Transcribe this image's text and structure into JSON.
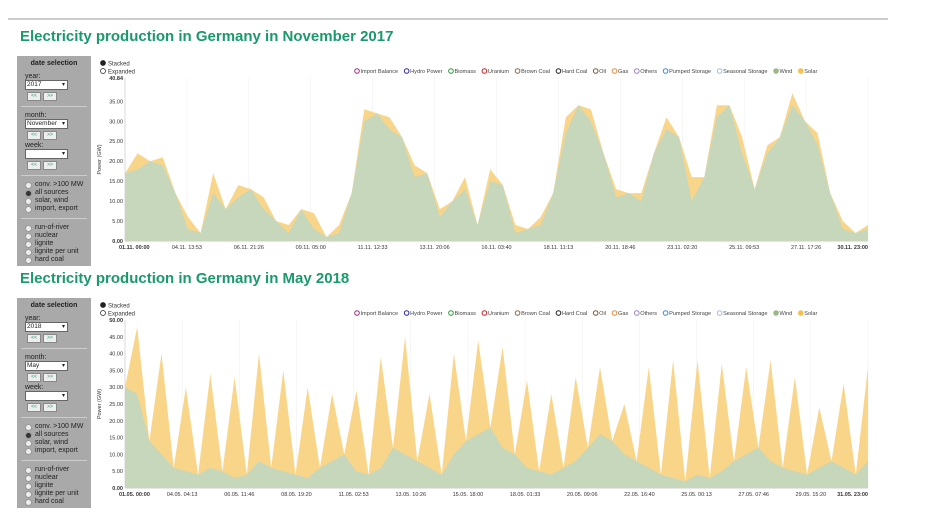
{
  "panel": {
    "heading": "date selection",
    "year_label": "year:",
    "month_label": "month:",
    "week_label": "week:",
    "prev": "<<",
    "next": ">>",
    "modes": [
      "conv. >100 MW",
      "all sources",
      "solar, wind",
      "import, export"
    ],
    "sources": [
      "run-of-river",
      "nuclear",
      "lignite",
      "lignite per unit",
      "hard coal"
    ]
  },
  "view_options": [
    "Stacked",
    "Expanded"
  ],
  "legend": [
    {
      "name": "Import Balance",
      "color": "#9b2a8c"
    },
    {
      "name": "Hydro Power",
      "color": "#2b2ba0"
    },
    {
      "name": "Biomass",
      "color": "#2a9a3a"
    },
    {
      "name": "Uranium",
      "color": "#d02020"
    },
    {
      "name": "Brown Coal",
      "color": "#8a6a50"
    },
    {
      "name": "Hard Coal",
      "color": "#222222"
    },
    {
      "name": "Oil",
      "color": "#7a5a3a"
    },
    {
      "name": "Gas",
      "color": "#e8883a"
    },
    {
      "name": "Others",
      "color": "#9a88c8"
    },
    {
      "name": "Pumped Storage",
      "color": "#3a8ad8"
    },
    {
      "name": "Seasonal Storage",
      "color": "#a8b8e8"
    },
    {
      "name": "Wind",
      "color": "#9ab88a",
      "filled": true
    },
    {
      "name": "Solar",
      "color": "#f5c050",
      "filled": true
    }
  ],
  "colors": {
    "wind": "#c6d7bc",
    "solar": "#f9d58a",
    "title": "#1a9a6c"
  },
  "chart_data": [
    {
      "type": "area",
      "title": "Electricity production in Germany in November 2017",
      "ylabel": "Power (GW)",
      "year": "2017",
      "month": "November",
      "stacked": true,
      "ylim": [
        0,
        40.84
      ],
      "yticks": [
        "0.00",
        "5.00",
        "10.00",
        "15.00",
        "20.00",
        "25.00",
        "30.00",
        "35.00",
        "40.84"
      ],
      "xticks": [
        "01.11. 00:00",
        "04.11. 13:53",
        "06.11. 21:26",
        "09.11. 05:00",
        "11.11. 12:33",
        "13.11. 20:06",
        "16.11. 03:40",
        "18.11. 11:13",
        "20.11. 18:46",
        "23.11. 02:20",
        "25.11. 09:53",
        "27.11. 17:26",
        "30.11. 23:00"
      ],
      "x_step": "12h",
      "series": [
        {
          "name": "Wind",
          "values": [
            17,
            18,
            20,
            19,
            12,
            3,
            2,
            12,
            8,
            11,
            13,
            8,
            5,
            2,
            8,
            3,
            1,
            2,
            12,
            30,
            32,
            28,
            26,
            16,
            17,
            6,
            10,
            13,
            4,
            15,
            14,
            2,
            3,
            4,
            12,
            27,
            34,
            30,
            22,
            11,
            12,
            10,
            22,
            28,
            26,
            10,
            16,
            31,
            34,
            22,
            13,
            22,
            26,
            34,
            30,
            24,
            12,
            3,
            2,
            3
          ]
        },
        {
          "name": "Solar",
          "values": [
            0,
            4,
            0,
            2,
            0,
            3,
            0,
            5,
            0,
            3,
            0,
            3,
            0,
            2,
            0,
            4,
            0,
            2,
            0,
            3,
            0,
            3,
            0,
            3,
            0,
            2,
            0,
            3,
            0,
            3,
            0,
            2,
            0,
            2,
            0,
            4,
            0,
            3,
            0,
            2,
            0,
            2,
            0,
            3,
            0,
            6,
            0,
            3,
            0,
            4,
            0,
            2,
            0,
            3,
            0,
            3,
            0,
            2,
            0,
            1
          ]
        }
      ]
    },
    {
      "type": "area",
      "title": "Electricity production in Germany in May 2018",
      "ylabel": "Power (GW)",
      "year": "2018",
      "month": "May",
      "stacked": true,
      "ylim": [
        0,
        50
      ],
      "yticks": [
        "0.00",
        "5.00",
        "10.00",
        "15.00",
        "20.00",
        "25.00",
        "30.00",
        "35.00",
        "40.00",
        "45.00",
        "50.00"
      ],
      "xticks": [
        "01.05. 00:00",
        "04.05. 04:13",
        "06.05. 11:46",
        "08.05. 19:20",
        "11.05. 02:53",
        "13.05. 10:26",
        "15.05. 18:00",
        "18.05. 01:33",
        "20.05. 09:06",
        "22.05. 16:40",
        "25.05. 00:13",
        "27.05. 07:46",
        "29.05. 15:20",
        "31.05. 23:00"
      ],
      "x_step": "12h",
      "series": [
        {
          "name": "Wind",
          "values": [
            30,
            28,
            14,
            10,
            6,
            5,
            4,
            6,
            5,
            3,
            4,
            8,
            6,
            5,
            4,
            3,
            6,
            8,
            10,
            5,
            4,
            6,
            12,
            10,
            8,
            6,
            4,
            10,
            14,
            16,
            18,
            12,
            10,
            6,
            5,
            4,
            6,
            8,
            12,
            16,
            14,
            10,
            8,
            6,
            4,
            3,
            2,
            4,
            3,
            5,
            8,
            10,
            12,
            8,
            6,
            5,
            4,
            6,
            8,
            6,
            4,
            8
          ]
        },
        {
          "name": "Solar",
          "values": [
            0,
            20,
            0,
            30,
            0,
            25,
            0,
            28,
            0,
            30,
            0,
            32,
            0,
            30,
            0,
            27,
            0,
            20,
            0,
            24,
            0,
            33,
            0,
            35,
            0,
            22,
            0,
            30,
            0,
            28,
            0,
            30,
            0,
            26,
            0,
            24,
            0,
            25,
            0,
            20,
            0,
            15,
            0,
            30,
            0,
            35,
            0,
            34,
            0,
            32,
            0,
            26,
            0,
            30,
            0,
            28,
            0,
            18,
            0,
            25,
            0,
            28
          ]
        }
      ]
    }
  ]
}
